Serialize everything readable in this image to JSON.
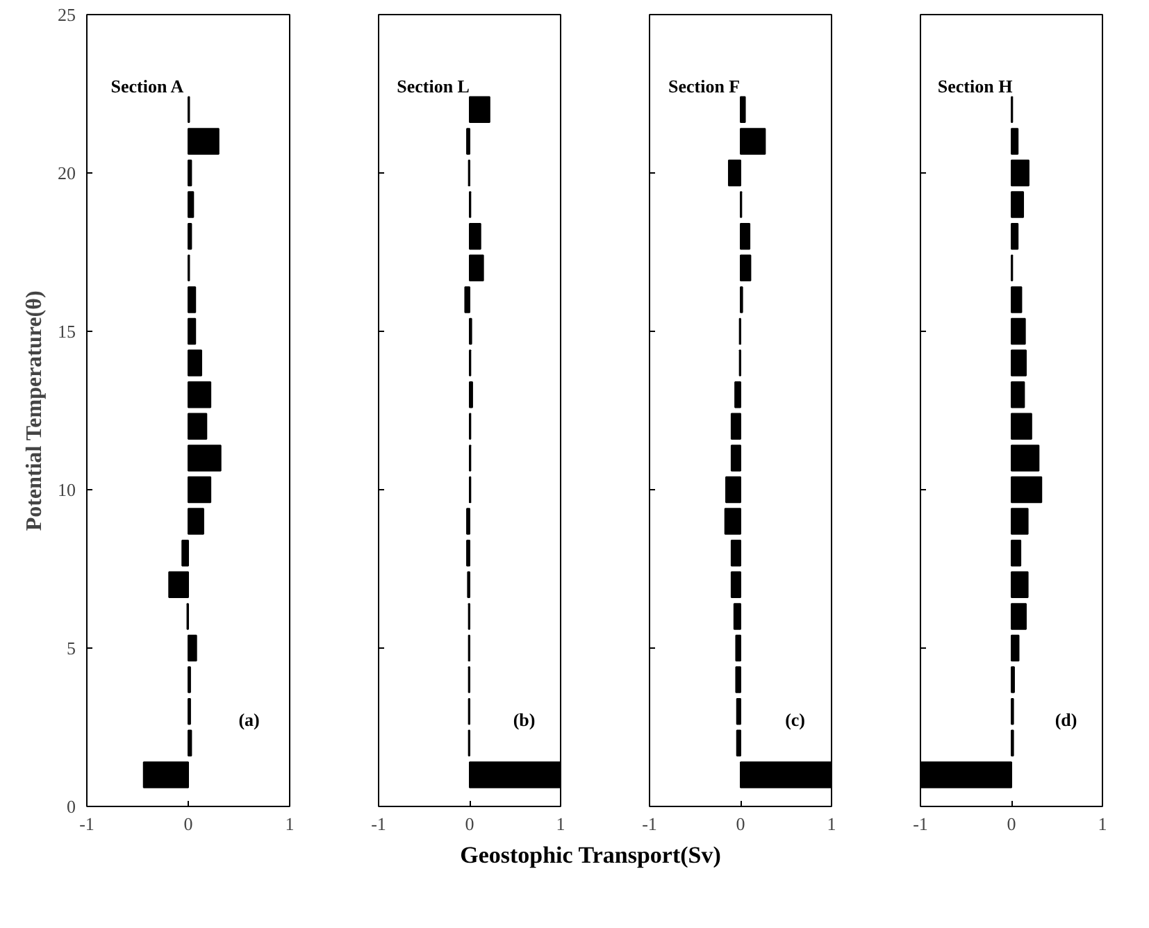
{
  "chart_data": [
    {
      "type": "bar",
      "orientation": "horizontal",
      "ylabel": "Potential Temperature(θ)",
      "annotations": [
        "Section A",
        "(a)"
      ],
      "x": [
        1,
        2,
        3,
        4,
        5,
        6,
        7,
        8,
        9,
        10,
        11,
        12,
        13,
        14,
        15,
        16,
        17,
        18,
        19,
        20,
        21,
        22
      ],
      "values": [
        -0.44,
        0.03,
        0.02,
        0.02,
        0.08,
        -0.01,
        -0.19,
        -0.06,
        0.15,
        0.22,
        0.32,
        0.18,
        0.22,
        0.13,
        0.07,
        0.07,
        0.01,
        0.03,
        0.05,
        0.03,
        0.3,
        0.01
      ],
      "color": "#000000",
      "xlim": [
        -1,
        1
      ],
      "xticks": [
        -1,
        0,
        1
      ],
      "ylim": [
        0,
        25
      ],
      "yticks": [
        0,
        5,
        10,
        15,
        20,
        25
      ],
      "grid": false
    },
    {
      "type": "bar",
      "orientation": "horizontal",
      "xlabel": "Geostophic Transport(Sv)",
      "annotations": [
        "Section L",
        "(b)"
      ],
      "x": [
        1,
        2,
        3,
        4,
        5,
        6,
        7,
        8,
        9,
        10,
        11,
        12,
        13,
        14,
        15,
        16,
        17,
        18,
        19,
        20,
        21,
        22
      ],
      "values": [
        1.0,
        -0.01,
        -0.01,
        -0.01,
        -0.01,
        -0.01,
        -0.02,
        -0.03,
        -0.03,
        0.01,
        0.01,
        0.01,
        0.03,
        0.01,
        0.02,
        -0.05,
        0.15,
        0.12,
        0.01,
        -0.01,
        -0.03,
        0.22
      ],
      "color": "#000000",
      "xlim": [
        -1,
        1
      ],
      "xticks": [
        -1,
        0,
        1
      ],
      "ylim": [
        0,
        25
      ],
      "yticks": [
        0,
        5,
        10,
        15,
        20,
        25
      ],
      "tick_labels": "x",
      "grid": false
    },
    {
      "type": "bar",
      "orientation": "horizontal",
      "annotations": [
        "Section F",
        "(c)"
      ],
      "x": [
        1,
        2,
        3,
        4,
        5,
        6,
        7,
        8,
        9,
        10,
        11,
        12,
        13,
        14,
        15,
        16,
        17,
        18,
        19,
        20,
        21,
        22
      ],
      "values": [
        1.0,
        -0.04,
        -0.04,
        -0.05,
        -0.05,
        -0.07,
        -0.1,
        -0.1,
        -0.17,
        -0.16,
        -0.1,
        -0.1,
        -0.06,
        -0.01,
        -0.01,
        0.02,
        0.11,
        0.1,
        0.01,
        -0.13,
        0.27,
        0.05
      ],
      "color": "#000000",
      "xlim": [
        -1,
        1
      ],
      "xticks": [
        -1,
        0,
        1
      ],
      "ylim": [
        0,
        25
      ],
      "yticks": [
        0,
        5,
        10,
        15,
        20,
        25
      ],
      "tick_labels": "x",
      "grid": false
    },
    {
      "type": "bar",
      "orientation": "horizontal",
      "annotations": [
        "Section H",
        "(d)"
      ],
      "x": [
        1,
        2,
        3,
        4,
        5,
        6,
        7,
        8,
        9,
        10,
        11,
        12,
        13,
        14,
        15,
        16,
        17,
        18,
        19,
        20,
        21,
        22
      ],
      "values": [
        -1.0,
        0.02,
        0.02,
        0.03,
        0.08,
        0.16,
        0.18,
        0.1,
        0.18,
        0.33,
        0.3,
        0.22,
        0.14,
        0.16,
        0.15,
        0.11,
        0.01,
        0.07,
        0.13,
        0.19,
        0.07,
        0.01
      ],
      "color": "#000000",
      "xlim": [
        -1,
        1
      ],
      "xticks": [
        -1,
        0,
        1
      ],
      "ylim": [
        0,
        25
      ],
      "yticks": [
        0,
        5,
        10,
        15,
        20,
        25
      ],
      "tick_labels": "x",
      "grid": false
    }
  ]
}
